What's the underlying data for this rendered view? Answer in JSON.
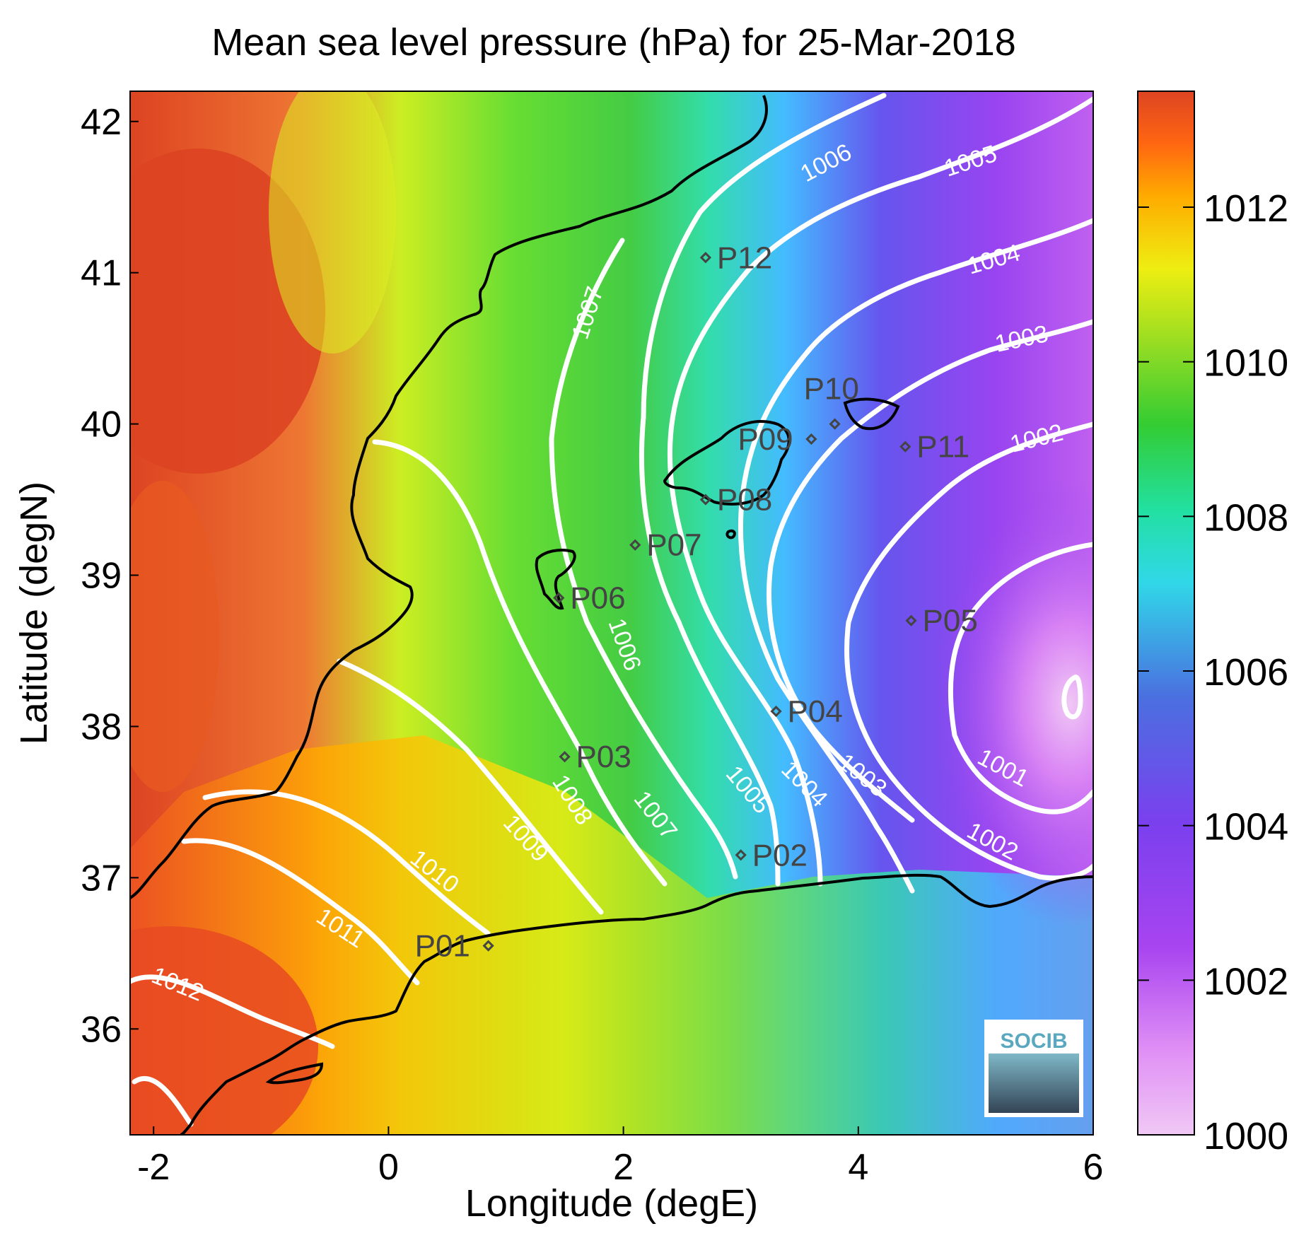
{
  "title": "Mean sea level pressure (hPa) for 25-Mar-2018",
  "xlabel": "Longitude (degE)",
  "ylabel": "Latitude (degN)",
  "x_ticks": [
    "-2",
    "0",
    "2",
    "4",
    "6"
  ],
  "y_ticks": [
    "42",
    "41",
    "40",
    "39",
    "38",
    "37",
    "36"
  ],
  "colorbar": {
    "ticks": [
      "1012",
      "1010",
      "1008",
      "1006",
      "1004",
      "1002",
      "1000"
    ],
    "min": 1000,
    "max": 1013.5,
    "colors": [
      "#f0c8f5",
      "#cf5cf2",
      "#8844ee",
      "#4a70e0",
      "#30d8e8",
      "#22e0a0",
      "#33cc33",
      "#99dd22",
      "#eeee11",
      "#ffaa00",
      "#ff6611",
      "#dd4422"
    ]
  },
  "contour_labels": {
    "c1006_top": "1006",
    "c1005_top": "1005",
    "c1004_top": "1004",
    "c1003_top": "1003",
    "c1002_top": "1002",
    "c1007_top": "1007",
    "c1006_mid": "1006",
    "c1008": "1008",
    "c1009": "1009",
    "c1010": "1010",
    "c1011": "1011",
    "c1012": "1012",
    "c1007_bot": "1007",
    "c1005_bot": "1005",
    "c1004_bot": "1004",
    "c1003_bot": "1003",
    "c1002_bot": "1002",
    "c1001": "1001"
  },
  "points": [
    {
      "id": "P01",
      "lon": 0.85,
      "lat": 36.55
    },
    {
      "id": "P02",
      "lon": 3.0,
      "lat": 37.15
    },
    {
      "id": "P03",
      "lon": 1.5,
      "lat": 37.8
    },
    {
      "id": "P04",
      "lon": 3.3,
      "lat": 38.1
    },
    {
      "id": "P05",
      "lon": 4.45,
      "lat": 38.7
    },
    {
      "id": "P06",
      "lon": 1.45,
      "lat": 38.85
    },
    {
      "id": "P07",
      "lon": 2.1,
      "lat": 39.2
    },
    {
      "id": "P08",
      "lon": 2.7,
      "lat": 39.5
    },
    {
      "id": "P09",
      "lon": 3.6,
      "lat": 39.9
    },
    {
      "id": "P10",
      "lon": 3.8,
      "lat": 40.0
    },
    {
      "id": "P11",
      "lon": 4.4,
      "lat": 39.85
    },
    {
      "id": "P12",
      "lon": 2.7,
      "lat": 41.1
    }
  ],
  "axis": {
    "xlim": [
      -2.2,
      6.0
    ],
    "ylim": [
      35.3,
      42.2
    ]
  },
  "logo": "SOCIB"
}
